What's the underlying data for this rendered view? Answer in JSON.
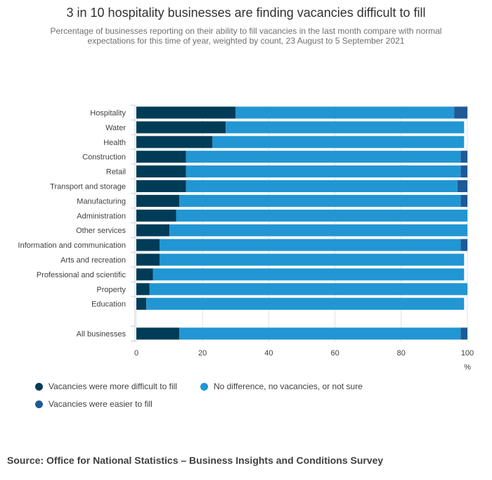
{
  "chart_data": {
    "type": "bar",
    "orientation": "horizontal",
    "stacked": true,
    "title": "3 in 10 hospitality businesses are finding vacancies difficult to fill",
    "subtitle": "Percentage of businesses reporting on their ability to fill vacancies in the last month compare with normal expectations for this time of year, weighted by count, 23 August to 5 September 2021",
    "xlabel": "%",
    "xlim": [
      0,
      100
    ],
    "xticks": [
      "0",
      "20",
      "40",
      "60",
      "80",
      "100"
    ],
    "categories": [
      "Hospitality",
      "Water",
      "Health",
      "Construction",
      "Retail",
      "Transport and storage",
      "Manufacturing",
      "Administration",
      "Other services",
      "Information and communication",
      "Arts and recreation",
      "Professional and scientific",
      "Property",
      "Education",
      "All businesses"
    ],
    "series": [
      {
        "name": "Vacancies were more difficult to fill",
        "color": "#003c57",
        "values": [
          30,
          27,
          23,
          15,
          15,
          15,
          13,
          12,
          10,
          7,
          7,
          5,
          4,
          3,
          13
        ]
      },
      {
        "name": "No difference, no vacancies, or not sure",
        "color": "#2196d3",
        "values": [
          66,
          72,
          76,
          83,
          83,
          82,
          85,
          88,
          90,
          91,
          92,
          94,
          96,
          96,
          85
        ]
      },
      {
        "name": "Vacancies were easier to fill",
        "color": "#1f5a96",
        "values": [
          4,
          0,
          0,
          2,
          2,
          3,
          2,
          0,
          0,
          2,
          0,
          0,
          0,
          0,
          2
        ]
      }
    ],
    "grid": true,
    "legend_position": "bottom-left"
  },
  "source": "Source: Office for National Statistics – Business Insights and Conditions Survey"
}
